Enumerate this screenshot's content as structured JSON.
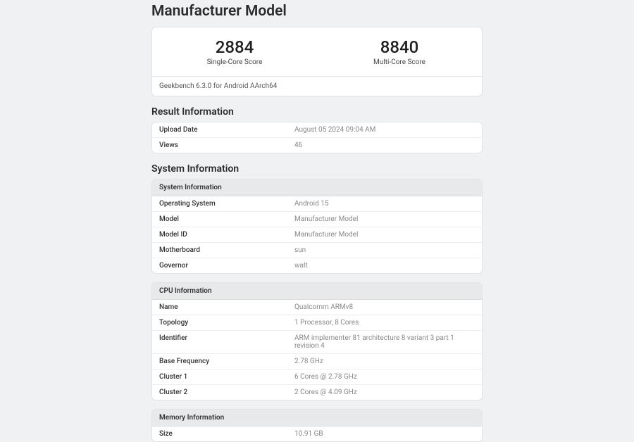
{
  "page_title": "Manufacturer Model",
  "scores": {
    "single": {
      "value": "2884",
      "label": "Single-Core Score"
    },
    "multi": {
      "value": "8840",
      "label": "Multi-Core Score"
    },
    "version": "Geekbench 6.3.0 for Android AArch64"
  },
  "result_info": {
    "title": "Result Information",
    "rows": [
      {
        "label": "Upload Date",
        "value": "August 05 2024 09:04 AM"
      },
      {
        "label": "Views",
        "value": "46"
      }
    ]
  },
  "system_info": {
    "title": "System Information",
    "header": "System Information",
    "rows": [
      {
        "label": "Operating System",
        "value": "Android 15"
      },
      {
        "label": "Model",
        "value": "Manufacturer Model"
      },
      {
        "label": "Model ID",
        "value": "Manufacturer Model"
      },
      {
        "label": "Motherboard",
        "value": "sun"
      },
      {
        "label": "Governor",
        "value": "walt"
      }
    ]
  },
  "cpu_info": {
    "header": "CPU Information",
    "rows": [
      {
        "label": "Name",
        "value": "Qualcomm ARMv8"
      },
      {
        "label": "Topology",
        "value": "1 Processor, 8 Cores"
      },
      {
        "label": "Identifier",
        "value": "ARM implementer 81 architecture 8 variant 3 part 1 revision 4"
      },
      {
        "label": "Base Frequency",
        "value": "2.78 GHz"
      },
      {
        "label": "Cluster 1",
        "value": "6 Cores @ 2.78 GHz"
      },
      {
        "label": "Cluster 2",
        "value": "2 Cores @ 4.09 GHz"
      }
    ]
  },
  "memory_info": {
    "header": "Memory Information",
    "rows": [
      {
        "label": "Size",
        "value": "10.91 GB"
      }
    ]
  }
}
